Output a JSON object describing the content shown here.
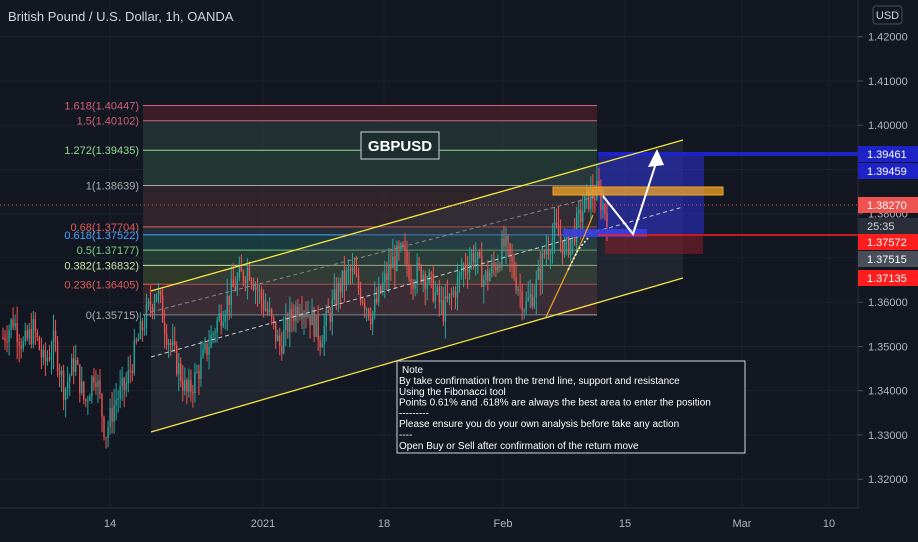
{
  "header": {
    "title": "British Pound / U.S. Dollar, 1h, OANDA",
    "currency_button": "USD"
  },
  "symbol_label": "GBPUSD",
  "colors": {
    "background": "#131722",
    "bull": "#26a69a",
    "bear": "#ef5350",
    "channel": "#f5e642",
    "axis_text": "#b2b5be",
    "grid": "#1e222d",
    "fib_1618": "#d0607b",
    "fib_15": "#d0607b",
    "fib_1272": "#8fdc8f",
    "fib_1": "#aaaaaa",
    "fib_068": "#e05a5a",
    "fib_0618": "#4aa3ff",
    "fib_05": "#7ccf7c",
    "fib_0382": "#c8e0a0",
    "fib_0236": "#e05a5a",
    "fib_0": "#aaaaaa"
  },
  "chart_data": {
    "type": "candlestick",
    "symbol": "GBPUSD",
    "timeframe": "1h",
    "source": "OANDA",
    "x_ticks": [
      "14",
      "2021",
      "18",
      "Feb",
      "15",
      "Mar",
      "10"
    ],
    "ylim": [
      1.3135,
      1.4283
    ],
    "y_ticks": [
      1.32,
      1.33,
      1.34,
      1.35,
      1.36,
      1.37,
      1.38,
      1.39,
      1.4,
      1.41,
      1.42
    ],
    "y_tick_labels": [
      "1.32000",
      "1.33000",
      "1.34000",
      "1.35000",
      "1.36000",
      "1.37000",
      "1.38000",
      "1.39000",
      "1.40000",
      "1.41000",
      "1.42000"
    ],
    "fibonacci": [
      {
        "ratio": "1.618",
        "label": "1.618(1.40447)",
        "price": 1.40447
      },
      {
        "ratio": "1.5",
        "label": "1.5(1.40102)",
        "price": 1.40102
      },
      {
        "ratio": "1.272",
        "label": "1.272(1.39435)",
        "price": 1.39435
      },
      {
        "ratio": "1",
        "label": "1(1.38639)",
        "price": 1.38639
      },
      {
        "ratio": "0.68",
        "label": "0.68(1.37704)",
        "price": 1.37704
      },
      {
        "ratio": "0.618",
        "label": "0.618(1.37522)",
        "price": 1.37522
      },
      {
        "ratio": "0.5",
        "label": "0.5(1.37177)",
        "price": 1.37177
      },
      {
        "ratio": "0.382",
        "label": "0.382(1.36832)",
        "price": 1.36832
      },
      {
        "ratio": "0.236",
        "label": "0.236(1.36405)",
        "price": 1.36405
      },
      {
        "ratio": "0",
        "label": "0(1.35715)",
        "price": 1.35715
      }
    ],
    "price_labels": [
      {
        "text": "1.39461",
        "price": 1.39461,
        "color": "#1e23c8",
        "text_color": "#ffffff"
      },
      {
        "text": "1.39459",
        "price": 1.39459,
        "color": "#1e23c8",
        "text_color": "#ffffff"
      },
      {
        "text": "1.38270",
        "price": 1.3827,
        "color": "#ef5350",
        "text_color": "#ffffff"
      },
      {
        "text": "25:35",
        "price": 1.3798,
        "color": "#2a2e39",
        "text_color": "#d1d4dc"
      },
      {
        "text": "1.37572",
        "price": 1.37572,
        "color": "#ff1e1e",
        "text_color": "#ffffff"
      },
      {
        "text": "1.37515",
        "price": 1.37515,
        "color": "#4a4e5a",
        "text_color": "#ffffff"
      },
      {
        "text": "1.37135",
        "price": 1.37135,
        "color": "#ff1e1e",
        "text_color": "#ffffff"
      }
    ],
    "current_price": 1.3827,
    "projection": {
      "target": 1.39461,
      "entry": 1.37572,
      "stop": 1.37135
    },
    "channel": {
      "upper": [
        [
          1.3633,
          1.3937
        ]
      ],
      "lower": [
        [
          1.3315,
          1.3648
        ]
      ]
    },
    "candles_approx": [
      1.352,
      1.356,
      1.35,
      1.354,
      1.346,
      1.351,
      1.34,
      1.347,
      1.337,
      1.345,
      1.33,
      1.338,
      1.341,
      1.35,
      1.357,
      1.363,
      1.353,
      1.346,
      1.339,
      1.344,
      1.35,
      1.356,
      1.361,
      1.365,
      1.368,
      1.362,
      1.357,
      1.35,
      1.356,
      1.36,
      1.357,
      1.352,
      1.358,
      1.364,
      1.367,
      1.362,
      1.357,
      1.363,
      1.369,
      1.371,
      1.366,
      1.367,
      1.363,
      1.358,
      1.362,
      1.368,
      1.371,
      1.365,
      1.368,
      1.373,
      1.366,
      1.359,
      1.363,
      1.372,
      1.376,
      1.372,
      1.377,
      1.383,
      1.385,
      1.38
    ]
  },
  "note": {
    "title": "Note",
    "lines": [
      "By take confirmation from the trend line, support and resistance",
      "Using the Fibonacci tool",
      "Points 0.61% and .618% are always the best area to enter the position",
      "---------",
      "Please ensure you do your own analysis before take any action",
      "----",
      "Open Buy or Sell after confirmation of the return move"
    ]
  }
}
